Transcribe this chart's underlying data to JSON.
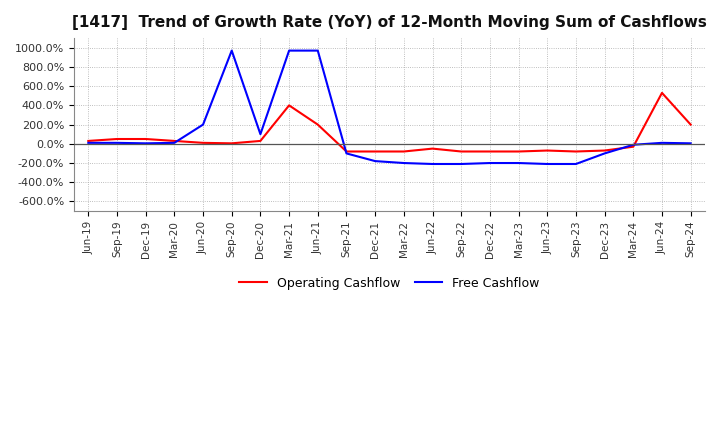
{
  "title": "[1417]  Trend of Growth Rate (YoY) of 12-Month Moving Sum of Cashflows",
  "title_fontsize": 11,
  "ylim": [
    -700,
    1100
  ],
  "yticks": [
    -600,
    -400,
    -200,
    0,
    200,
    400,
    600,
    800,
    1000
  ],
  "ytick_labels": [
    "-600.0%",
    "-400.0%",
    "-200.0%",
    "0.0%",
    "200.0%",
    "400.0%",
    "600.0%",
    "800.0%",
    "1000.0%"
  ],
  "background_color": "#ffffff",
  "grid_color": "#aaaaaa",
  "operating_color": "#ff0000",
  "free_color": "#0000ff",
  "x_labels": [
    "Jun-19",
    "Sep-19",
    "Dec-19",
    "Mar-20",
    "Jun-20",
    "Sep-20",
    "Dec-20",
    "Mar-21",
    "Jun-21",
    "Sep-21",
    "Dec-21",
    "Mar-22",
    "Jun-22",
    "Sep-22",
    "Dec-22",
    "Mar-23",
    "Jun-23",
    "Sep-23",
    "Dec-23",
    "Mar-24",
    "Jun-24",
    "Sep-24"
  ],
  "operating_cashflow": [
    30,
    50,
    50,
    30,
    10,
    5,
    30,
    400,
    200,
    -80,
    -80,
    -80,
    -50,
    -80,
    -80,
    -80,
    -70,
    -80,
    -70,
    -30,
    530,
    200
  ],
  "free_cashflow": [
    10,
    10,
    5,
    10,
    200,
    970,
    100,
    970,
    970,
    -100,
    -180,
    -200,
    -210,
    -210,
    -200,
    -200,
    -210,
    -210,
    -100,
    -10,
    10,
    5
  ]
}
